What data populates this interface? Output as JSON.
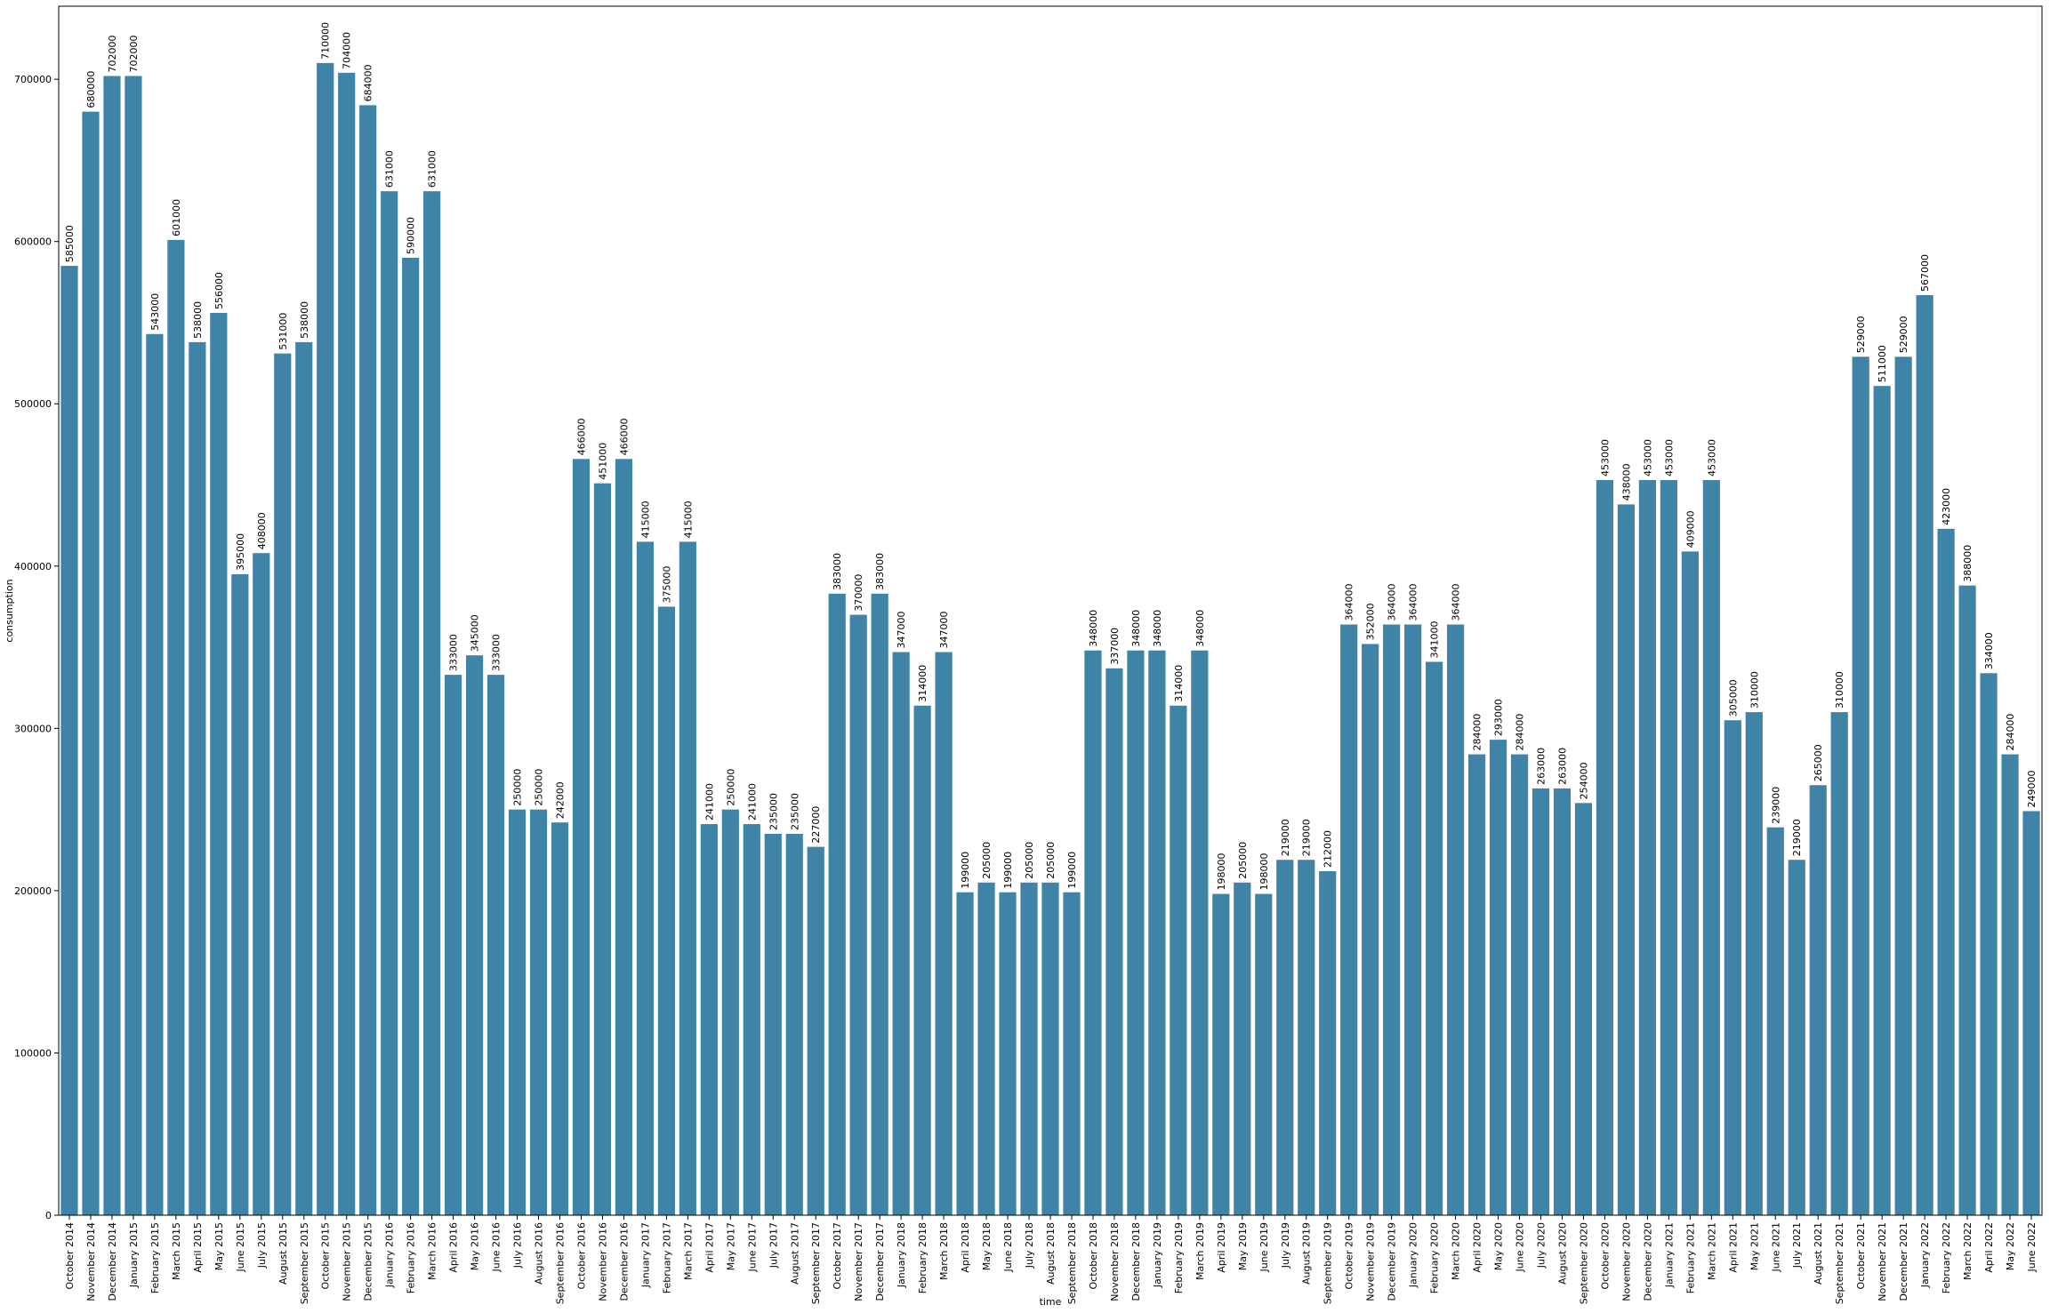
{
  "chart_data": {
    "type": "bar",
    "x_label": "time",
    "y_label": "consumption",
    "categories": [
      "October 2014",
      "November 2014",
      "December 2014",
      "January 2015",
      "February 2015",
      "March 2015",
      "April 2015",
      "May 2015",
      "June 2015",
      "July 2015",
      "August 2015",
      "September 2015",
      "October 2015",
      "November 2015",
      "December 2015",
      "January 2016",
      "February 2016",
      "March 2016",
      "April 2016",
      "May 2016",
      "June 2016",
      "July 2016",
      "August 2016",
      "September 2016",
      "October 2016",
      "November 2016",
      "December 2016",
      "January 2017",
      "February 2017",
      "March 2017",
      "April 2017",
      "May 2017",
      "June 2017",
      "July 2017",
      "August 2017",
      "September 2017",
      "October 2017",
      "November 2017",
      "December 2017",
      "January 2018",
      "February 2018",
      "March 2018",
      "April 2018",
      "May 2018",
      "June 2018",
      "July 2018",
      "August 2018",
      "September 2018",
      "October 2018",
      "November 2018",
      "December 2018",
      "January 2019",
      "February 2019",
      "March 2019",
      "April 2019",
      "May 2019",
      "June 2019",
      "July 2019",
      "August 2019",
      "September 2019",
      "October 2019",
      "November 2019",
      "December 2019",
      "January 2020",
      "February 2020",
      "March 2020",
      "April 2020",
      "May 2020",
      "June 2020",
      "July 2020",
      "August 2020",
      "September 2020",
      "October 2020",
      "November 2020",
      "December 2020",
      "January 2021",
      "February 2021",
      "March 2021",
      "April 2021",
      "May 2021",
      "June 2021",
      "July 2021",
      "August 2021",
      "September 2021",
      "October 2021",
      "November 2021",
      "December 2021",
      "January 2022",
      "February 2022",
      "March 2022",
      "April 2022",
      "May 2022",
      "June 2022"
    ],
    "values": [
      585000,
      680000,
      702000,
      702000,
      543000,
      601000,
      538000,
      556000,
      395000,
      408000,
      531000,
      538000,
      710000,
      704000,
      684000,
      631000,
      590000,
      631000,
      333000,
      345000,
      333000,
      250000,
      250000,
      242000,
      466000,
      451000,
      466000,
      415000,
      375000,
      415000,
      241000,
      250000,
      241000,
      235000,
      235000,
      227000,
      383000,
      370000,
      383000,
      347000,
      314000,
      347000,
      199000,
      205000,
      199000,
      205000,
      205000,
      199000,
      348000,
      337000,
      348000,
      348000,
      314000,
      348000,
      198000,
      205000,
      198000,
      219000,
      219000,
      212000,
      364000,
      352000,
      364000,
      364000,
      341000,
      364000,
      284000,
      293000,
      284000,
      263000,
      263000,
      254000,
      453000,
      438000,
      453000,
      453000,
      409000,
      453000,
      305000,
      310000,
      239000,
      219000,
      265000,
      310000,
      529000,
      511000,
      529000,
      567000,
      423000,
      388000,
      334000,
      284000,
      249000
    ],
    "color": "#3f83a6",
    "ylim": [
      0,
      745000
    ],
    "yticks": [
      0,
      100000,
      200000,
      300000,
      400000,
      500000,
      600000,
      700000
    ],
    "grid": false
  }
}
